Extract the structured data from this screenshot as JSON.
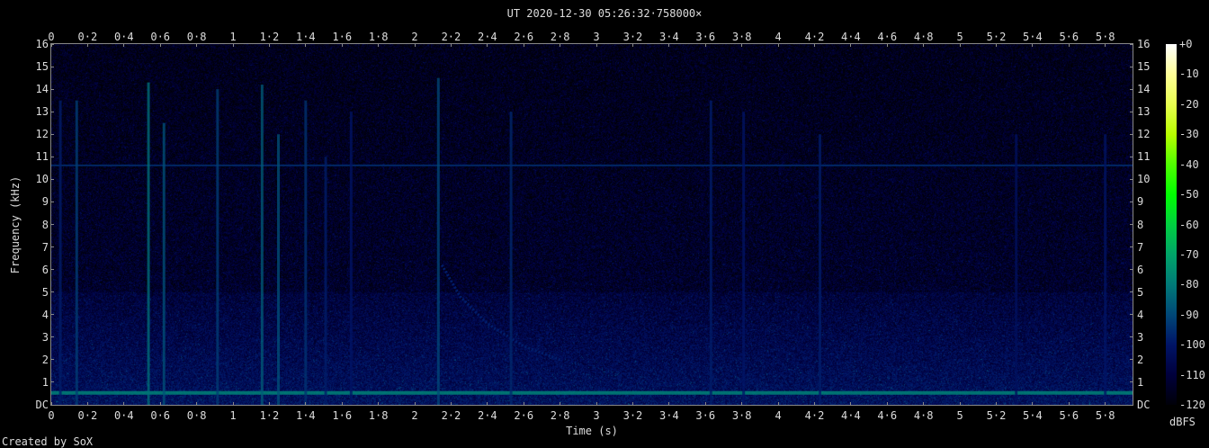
{
  "title": "UT 2020-12-30 05:26:32·758000×",
  "credit": "Created by SoX",
  "chart_data": {
    "type": "heatmap",
    "title": "UT 2020-12-30 05:26:32·758000×",
    "xlabel": "Time (s)",
    "ylabel": "Frequency (kHz)",
    "xlim": [
      0,
      5.95
    ],
    "ylim": [
      0,
      16
    ],
    "x_ticks": [
      "0",
      "0·2",
      "0·4",
      "0·6",
      "0·8",
      "1",
      "1·2",
      "1·4",
      "1·6",
      "1·8",
      "2",
      "2·2",
      "2·4",
      "2·6",
      "2·8",
      "3",
      "3·2",
      "3·4",
      "3·6",
      "3·8",
      "4",
      "4·2",
      "4·4",
      "4·6",
      "4·8",
      "5",
      "5·2",
      "5·4",
      "5·6",
      "5·8"
    ],
    "y_ticks": [
      "DC",
      "1",
      "2",
      "3",
      "4",
      "5",
      "6",
      "7",
      "8",
      "9",
      "10",
      "11",
      "12",
      "13",
      "14",
      "15",
      "16"
    ],
    "colorbar": {
      "label": "dBFS",
      "range": [
        -120,
        0
      ],
      "ticks": [
        "+0",
        "-10",
        "-20",
        "-30",
        "-40",
        "-50",
        "-60",
        "-70",
        "-80",
        "-90",
        "-100",
        "-110",
        "-120"
      ],
      "colors": [
        "#000008",
        "#00003c",
        "#001466",
        "#004878",
        "#007a78",
        "#00a468",
        "#00d040",
        "#00ff00",
        "#50ff00",
        "#b8ff00",
        "#e8ff50",
        "#ffff98",
        "#ffffff"
      ]
    },
    "horizontal_lines_khz": [
      {
        "freq": 10.6,
        "level_db": -95
      },
      {
        "freq": 0.55,
        "level_db": -78
      }
    ],
    "vertical_bursts": [
      {
        "t": 0.05,
        "fmax": 13.5,
        "level_db": -98
      },
      {
        "t": 0.14,
        "fmax": 13.5,
        "level_db": -92
      },
      {
        "t": 0.535,
        "fmax": 14.3,
        "level_db": -82
      },
      {
        "t": 0.62,
        "fmax": 12.5,
        "level_db": -88
      },
      {
        "t": 0.915,
        "fmax": 14,
        "level_db": -92
      },
      {
        "t": 1.16,
        "fmax": 14.2,
        "level_db": -86
      },
      {
        "t": 1.25,
        "fmax": 12,
        "level_db": -88
      },
      {
        "t": 1.4,
        "fmax": 13.5,
        "level_db": -94
      },
      {
        "t": 1.51,
        "fmax": 11,
        "level_db": -98
      },
      {
        "t": 1.65,
        "fmax": 13,
        "level_db": -100
      },
      {
        "t": 2.13,
        "fmax": 14.5,
        "level_db": -90
      },
      {
        "t": 2.53,
        "fmax": 13,
        "level_db": -96
      },
      {
        "t": 3.63,
        "fmax": 13.5,
        "level_db": -98
      },
      {
        "t": 3.81,
        "fmax": 13,
        "level_db": -100
      },
      {
        "t": 4.23,
        "fmax": 12,
        "level_db": -98
      },
      {
        "t": 5.31,
        "fmax": 12,
        "level_db": -102
      },
      {
        "t": 5.8,
        "fmax": 12,
        "level_db": -100
      }
    ],
    "descending_tone": {
      "points": [
        [
          2.15,
          6.2
        ],
        [
          2.25,
          4.8
        ],
        [
          2.4,
          3.6
        ],
        [
          2.6,
          2.6
        ],
        [
          2.8,
          2.0
        ]
      ],
      "level_db": -98
    }
  }
}
